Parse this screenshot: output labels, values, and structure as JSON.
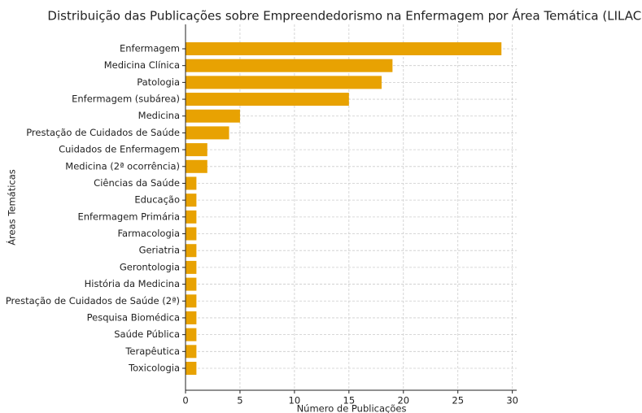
{
  "chart_data": {
    "type": "barh",
    "title": "Distribuição das Publicações sobre Empreendedorismo na Enfermagem por Área Temática (LILACS)",
    "xlabel": "Número de Publicações",
    "ylabel": "Áreas Temáticas",
    "categories": [
      "Enfermagem",
      "Medicina Clínica",
      "Patologia",
      "Enfermagem (subárea)",
      "Medicina",
      "Prestação de Cuidados de Saúde",
      "Cuidados de Enfermagem",
      "Medicina (2ª ocorrência)",
      "Ciências da Saúde",
      "Educação",
      "Enfermagem Primária",
      "Farmacologia",
      "Geriatria",
      "Gerontologia",
      "História da Medicina",
      "Prestação de Cuidados de Saúde (2ª)",
      "Pesquisa Biomédica",
      "Saúde Pública",
      "Terapêutica",
      "Toxicologia"
    ],
    "values": [
      29,
      19,
      18,
      15,
      5,
      4,
      2,
      2,
      1,
      1,
      1,
      1,
      1,
      1,
      1,
      1,
      1,
      1,
      1,
      1
    ],
    "color": "#e8a202",
    "xlim": [
      0,
      30.4
    ],
    "xticks": [
      0,
      5,
      10,
      15,
      20,
      25,
      30
    ],
    "grid": true
  }
}
